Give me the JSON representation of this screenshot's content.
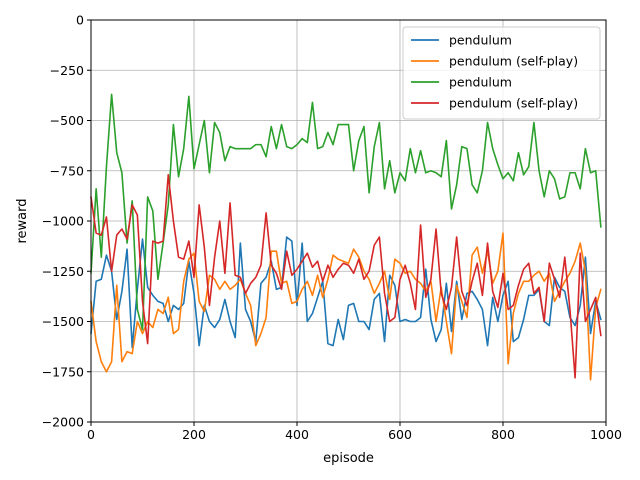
{
  "chart_data": {
    "type": "line",
    "title": "",
    "xlabel": "episode",
    "ylabel": "reward",
    "xlim": [
      0,
      1000
    ],
    "ylim": [
      -2000,
      0
    ],
    "x_ticks": [
      0,
      200,
      400,
      600,
      800,
      1000
    ],
    "y_ticks": [
      0,
      -250,
      -500,
      -750,
      -1000,
      -1250,
      -1500,
      -1750,
      -2000
    ],
    "x_tick_labels": [
      "0",
      "200",
      "400",
      "600",
      "800",
      "1000"
    ],
    "y_tick_labels": [
      "0",
      "−250",
      "−500",
      "−750",
      "−1000",
      "−1250",
      "−1500",
      "−1750",
      "−2000"
    ],
    "grid": true,
    "legend_position": "top-right",
    "x": [
      0,
      10,
      20,
      30,
      40,
      50,
      60,
      70,
      80,
      90,
      100,
      110,
      120,
      130,
      140,
      150,
      160,
      170,
      180,
      190,
      200,
      210,
      220,
      230,
      240,
      250,
      260,
      270,
      280,
      290,
      300,
      310,
      320,
      330,
      340,
      350,
      360,
      370,
      380,
      390,
      400,
      410,
      420,
      430,
      440,
      450,
      460,
      470,
      480,
      490,
      500,
      510,
      520,
      530,
      540,
      550,
      560,
      570,
      580,
      590,
      600,
      610,
      620,
      630,
      640,
      650,
      660,
      670,
      680,
      690,
      700,
      710,
      720,
      730,
      740,
      750,
      760,
      770,
      780,
      790,
      800,
      810,
      820,
      830,
      840,
      850,
      860,
      870,
      880,
      890,
      900,
      910,
      920,
      930,
      940,
      950,
      960,
      970,
      980,
      990
    ],
    "series": [
      {
        "name": "pendulum",
        "color": "#1f77b4",
        "values": [
          -1560,
          -1300,
          -1290,
          -1170,
          -1250,
          -1490,
          -1350,
          -1140,
          -1630,
          -1340,
          -1090,
          -1330,
          -1370,
          -1400,
          -1410,
          -1500,
          -1420,
          -1440,
          -1410,
          -1200,
          -1360,
          -1620,
          -1420,
          -1500,
          -1530,
          -1490,
          -1390,
          -1500,
          -1580,
          -1110,
          -1440,
          -1500,
          -1600,
          -1310,
          -1280,
          -1200,
          -1340,
          -1330,
          -1080,
          -1100,
          -1420,
          -1110,
          -1500,
          -1460,
          -1380,
          -1300,
          -1610,
          -1620,
          -1490,
          -1590,
          -1420,
          -1410,
          -1500,
          -1500,
          -1540,
          -1390,
          -1360,
          -1600,
          -1270,
          -1320,
          -1500,
          -1490,
          -1500,
          -1500,
          -1480,
          -1240,
          -1490,
          -1600,
          -1540,
          -1310,
          -1550,
          -1300,
          -1490,
          -1360,
          -1350,
          -1390,
          -1440,
          -1620,
          -1380,
          -1500,
          -1370,
          -1300,
          -1600,
          -1580,
          -1490,
          -1370,
          -1370,
          -1340,
          -1500,
          -1520,
          -1280,
          -1330,
          -1350,
          -1480,
          -1520,
          -1420,
          -1180,
          -1560,
          -1400,
          -1490
        ]
      },
      {
        "name": "pendulum (self-play)",
        "color": "#ff7f0e",
        "values": [
          -1400,
          -1600,
          -1700,
          -1750,
          -1700,
          -1320,
          -1700,
          -1650,
          -1660,
          -1500,
          -1560,
          -1500,
          -1530,
          -1440,
          -1460,
          -1380,
          -1560,
          -1540,
          -1300,
          -1190,
          -1160,
          -1400,
          -1450,
          -1270,
          -1290,
          -1340,
          -1300,
          -1340,
          -1320,
          -1290,
          -1360,
          -1420,
          -1620,
          -1560,
          -1480,
          -1150,
          -1150,
          -1310,
          -1300,
          -1410,
          -1400,
          -1340,
          -1300,
          -1370,
          -1270,
          -1380,
          -1290,
          -1170,
          -1190,
          -1200,
          -1210,
          -1140,
          -1180,
          -1250,
          -1290,
          -1360,
          -1310,
          -1250,
          -1390,
          -1190,
          -1210,
          -1260,
          -1250,
          -1290,
          -1310,
          -1350,
          -1300,
          -1500,
          -1330,
          -1500,
          -1660,
          -1320,
          -1400,
          -1480,
          -1170,
          -1130,
          -1260,
          -1150,
          -1310,
          -1250,
          -1060,
          -1710,
          -1460,
          -1360,
          -1300,
          -1300,
          -1270,
          -1250,
          -1300,
          -1260,
          -1400,
          -1350,
          -1300,
          -1260,
          -1200,
          -1110,
          -1250,
          -1790,
          -1430,
          -1340
        ]
      },
      {
        "name": "pendulum",
        "color": "#2ca02c",
        "values": [
          -1260,
          -840,
          -1180,
          -730,
          -370,
          -660,
          -760,
          -1110,
          -900,
          -1440,
          -1540,
          -880,
          -950,
          -1290,
          -1110,
          -920,
          -520,
          -780,
          -640,
          -380,
          -740,
          -620,
          -500,
          -760,
          -510,
          -560,
          -700,
          -630,
          -640,
          -640,
          -640,
          -640,
          -620,
          -620,
          -680,
          -530,
          -640,
          -520,
          -630,
          -640,
          -620,
          -590,
          -610,
          -410,
          -640,
          -630,
          -560,
          -620,
          -520,
          -520,
          -520,
          -750,
          -600,
          -530,
          -860,
          -630,
          -510,
          -840,
          -700,
          -860,
          -760,
          -800,
          -640,
          -760,
          -650,
          -760,
          -750,
          -760,
          -780,
          -600,
          -940,
          -820,
          -630,
          -640,
          -820,
          -860,
          -750,
          -510,
          -640,
          -720,
          -790,
          -760,
          -800,
          -660,
          -770,
          -730,
          -510,
          -750,
          -880,
          -750,
          -790,
          -890,
          -880,
          -760,
          -760,
          -840,
          -640,
          -760,
          -750,
          -1030
        ]
      },
      {
        "name": "pendulum (self-play)",
        "color": "#d62728",
        "values": [
          -880,
          -1060,
          -1070,
          -980,
          -1250,
          -1070,
          -1040,
          -1090,
          -920,
          -970,
          -1400,
          -1610,
          -1100,
          -1110,
          -1100,
          -770,
          -1000,
          -1180,
          -1190,
          -1100,
          -1280,
          -920,
          -1130,
          -1420,
          -1180,
          -1000,
          -1260,
          -910,
          -1270,
          -1280,
          -1360,
          -1310,
          -1280,
          -1220,
          -960,
          -1220,
          -1260,
          -1340,
          -1150,
          -1270,
          -1240,
          -1200,
          -1160,
          -1230,
          -1200,
          -1300,
          -1220,
          -1280,
          -1240,
          -1210,
          -1220,
          -1260,
          -1190,
          -1290,
          -1250,
          -1120,
          -1080,
          -1360,
          -1500,
          -1480,
          -1290,
          -1220,
          -1310,
          -1440,
          -1020,
          -1380,
          -1290,
          -1040,
          -1360,
          -1440,
          -1330,
          -1080,
          -1350,
          -1420,
          -1300,
          -1210,
          -1370,
          -1110,
          -1350,
          -1430,
          -1260,
          -1440,
          -1420,
          -1320,
          -1240,
          -1210,
          -1360,
          -1330,
          -1500,
          -1210,
          -1290,
          -1380,
          -1180,
          -1440,
          -1780,
          -1160,
          -1500,
          -1440,
          -1380,
          -1570
        ]
      }
    ]
  }
}
